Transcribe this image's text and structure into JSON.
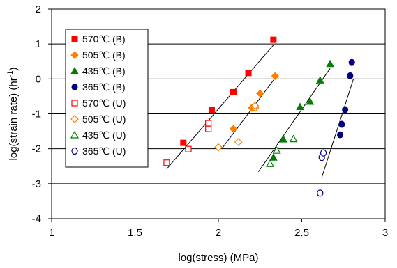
{
  "chart_data": {
    "type": "scatter",
    "title": "",
    "xlabel": "log(stress) (MPa)",
    "ylabel": "log(strain rate) (hr",
    "ylabel_sup": "-1",
    "ylabel_end": ")",
    "xlim": [
      1,
      3
    ],
    "ylim": [
      -4,
      2
    ],
    "xticks": [
      1,
      1.5,
      2,
      2.5,
      3
    ],
    "xtick_labels": [
      "1",
      "1.5",
      "2",
      "2.5",
      "3"
    ],
    "yticks": [
      -4,
      -3,
      -2,
      -1,
      0,
      1,
      2
    ],
    "ytick_labels": [
      "-4",
      "-3",
      "-2",
      "-1",
      "0",
      "1",
      "2"
    ],
    "grid": "horizontal",
    "legend_position": "top-left",
    "series": [
      {
        "name": "570℃ (B)",
        "marker": "square",
        "filled": true,
        "color": "#ff0000",
        "points": [
          [
            1.79,
            -1.83
          ],
          [
            1.96,
            -0.9
          ],
          [
            2.09,
            -0.38
          ],
          [
            2.18,
            0.17
          ],
          [
            2.33,
            1.12
          ]
        ]
      },
      {
        "name": "505℃ (B)",
        "marker": "diamond",
        "filled": true,
        "color": "#ff8000",
        "points": [
          [
            2.09,
            -1.43
          ],
          [
            2.2,
            -0.83
          ],
          [
            2.25,
            -0.42
          ],
          [
            2.34,
            0.08
          ]
        ]
      },
      {
        "name": "435℃ (B)",
        "marker": "triangle",
        "filled": true,
        "color": "#008000",
        "points": [
          [
            2.33,
            -2.25
          ],
          [
            2.39,
            -1.73
          ],
          [
            2.49,
            -0.8
          ],
          [
            2.55,
            -0.65
          ],
          [
            2.61,
            -0.04
          ],
          [
            2.67,
            0.43
          ]
        ]
      },
      {
        "name": "365℃ (B)",
        "marker": "circle",
        "filled": true,
        "color": "#000080",
        "points": [
          [
            2.73,
            -1.6
          ],
          [
            2.74,
            -1.3
          ],
          [
            2.76,
            -0.88
          ],
          [
            2.79,
            0.09
          ],
          [
            2.8,
            0.47
          ]
        ]
      },
      {
        "name": "570℃ (U)",
        "marker": "square",
        "filled": false,
        "color": "#ff0000",
        "points": [
          [
            1.69,
            -2.4
          ],
          [
            1.82,
            -2.01
          ],
          [
            1.94,
            -1.43
          ],
          [
            1.94,
            -1.27
          ]
        ]
      },
      {
        "name": "505℃ (U)",
        "marker": "diamond",
        "filled": false,
        "color": "#ff8000",
        "points": [
          [
            2.0,
            -1.96
          ],
          [
            2.12,
            -1.81
          ],
          [
            2.22,
            -0.83
          ],
          [
            2.22,
            -0.77
          ]
        ]
      },
      {
        "name": "435℃ (U)",
        "marker": "triangle",
        "filled": false,
        "color": "#008000",
        "points": [
          [
            2.31,
            -2.43
          ],
          [
            2.35,
            -2.05
          ],
          [
            2.45,
            -1.72
          ]
        ]
      },
      {
        "name": "365℃ (U)",
        "marker": "circle",
        "filled": false,
        "color": "#000080",
        "points": [
          [
            2.61,
            -3.27
          ],
          [
            2.62,
            -2.25
          ],
          [
            2.63,
            -2.12
          ]
        ]
      }
    ],
    "fit_lines": [
      {
        "from": [
          1.69,
          -2.58
        ],
        "to": [
          2.33,
          0.97
        ]
      },
      {
        "from": [
          2.02,
          -2.0
        ],
        "to": [
          2.36,
          0.15
        ]
      },
      {
        "from": [
          2.24,
          -2.66
        ],
        "to": [
          2.67,
          0.3
        ]
      },
      {
        "from": [
          2.62,
          -2.82
        ],
        "to": [
          2.81,
          0.0
        ]
      }
    ]
  }
}
